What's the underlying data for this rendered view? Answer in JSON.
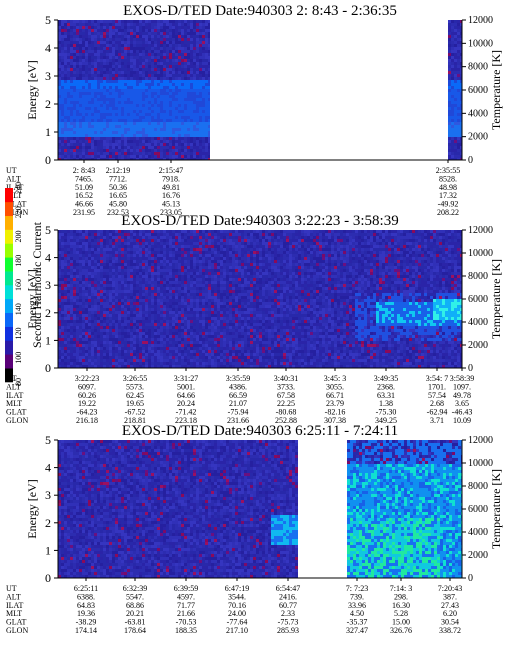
{
  "colorbar": {
    "label": "Second Harmonic Current",
    "ticks": [
      "80",
      "100",
      "120",
      "140",
      "160",
      "180",
      "200",
      "220",
      "240"
    ],
    "colors": [
      "#000000",
      "#5a0078",
      "#2a1aa8",
      "#1030e0",
      "#0a68f8",
      "#00a8f8",
      "#00e0d8",
      "#00e890",
      "#10ff30",
      "#98ff00",
      "#f0f000",
      "#ffb000",
      "#ff5000",
      "#ff0000"
    ]
  },
  "chart_data": [
    {
      "type": "heatmap",
      "title": "EXOS-D/TED   Date:940303  2: 8:43 - 2:36:35",
      "ylabel": "Energy [eV]",
      "ylim": [
        0,
        5
      ],
      "yticks": [
        "0",
        "1",
        "2",
        "3",
        "4",
        "5"
      ],
      "y2label": "Temperature [K]",
      "y2lim": [
        0,
        12000
      ],
      "y2ticks": [
        "0",
        "2000",
        "4000",
        "6000",
        "8000",
        "10000",
        "12000"
      ],
      "row_labels": [
        "UT",
        "ALT",
        "ILAT",
        "MLT",
        "GLAT",
        "GLON"
      ],
      "columns": [
        {
          "values": [
            "2: 8:43",
            "7465.",
            "51.09",
            "16.52",
            "46.66",
            "231.95"
          ]
        },
        {
          "values": [
            "2:12:19",
            "7712.",
            "50.36",
            "16.65",
            "45.80",
            "232.53"
          ]
        },
        {
          "values": [
            "2:15:47",
            "7918.",
            "49.81",
            "16.76",
            "45.13",
            "233.05"
          ]
        },
        {
          "values": [
            "2:35:55",
            "8528.",
            "48.98",
            "17.32",
            "-49.92",
            "208.22"
          ]
        }
      ]
    },
    {
      "type": "heatmap",
      "title": "EXOS-D/TED   Date:940303  3:22:23 - 3:58:39",
      "ylabel": "Energy [eV]",
      "ylim": [
        0,
        5
      ],
      "yticks": [
        "0",
        "1",
        "2",
        "3",
        "4",
        "5"
      ],
      "y2label": "Temperature [K]",
      "y2lim": [
        0,
        12000
      ],
      "y2ticks": [
        "0",
        "2000",
        "4000",
        "6000",
        "8000",
        "10000",
        "12000"
      ],
      "row_labels": [
        "UT",
        "ALT",
        "ILAT",
        "MLT",
        "GLAT",
        "GLON"
      ],
      "columns": [
        {
          "values": [
            "3:22:23",
            "6097.",
            "60.26",
            "19.22",
            "-64.23",
            "216.18"
          ]
        },
        {
          "values": [
            "3:26:55",
            "5573.",
            "62.45",
            "19.65",
            "-67.52",
            "218.81"
          ]
        },
        {
          "values": [
            "3:31:27",
            "5001.",
            "64.66",
            "20.24",
            "-71.42",
            "223.18"
          ]
        },
        {
          "values": [
            "3:35:59",
            "4386.",
            "66.59",
            "21.07",
            "-75.94",
            "231.66"
          ]
        },
        {
          "values": [
            "3:40:31",
            "3733.",
            "67.58",
            "22.25",
            "-80.68",
            "252.88"
          ]
        },
        {
          "values": [
            "3:45: 3",
            "3055.",
            "66.71",
            "23.79",
            "-82.16",
            "307.38"
          ]
        },
        {
          "values": [
            "3:49:35",
            "2368.",
            "63.31",
            "1.38",
            "-75.30",
            "349.25"
          ]
        },
        {
          "values": [
            "3:54: 7",
            "1701.",
            "57.54",
            "2.68",
            "-62.94",
            "3.71"
          ]
        },
        {
          "values": [
            "3:58:39",
            "1097.",
            "49.78",
            "3.65",
            "-46.43",
            "10.09"
          ]
        }
      ]
    },
    {
      "type": "heatmap",
      "title": "EXOS-D/TED   Date:940303  6:25:11 - 7:24:11",
      "ylabel": "Energy [eV]",
      "ylim": [
        0,
        5
      ],
      "yticks": [
        "0",
        "1",
        "2",
        "3",
        "4",
        "5"
      ],
      "y2label": "Temperature [K]",
      "y2lim": [
        0,
        12000
      ],
      "y2ticks": [
        "0",
        "2000",
        "4000",
        "6000",
        "8000",
        "10000",
        "12000"
      ],
      "row_labels": [
        "UT",
        "ALT",
        "ILAT",
        "MLT",
        "GLAT",
        "GLON"
      ],
      "columns": [
        {
          "values": [
            "6:25:11",
            "6388.",
            "64.83",
            "19.36",
            "-38.29",
            "174.14"
          ]
        },
        {
          "values": [
            "6:32:39",
            "5547.",
            "68.86",
            "20.21",
            "-63.81",
            "178.64"
          ]
        },
        {
          "values": [
            "6:39:59",
            "4597.",
            "71.77",
            "21.66",
            "-70.53",
            "188.35"
          ]
        },
        {
          "values": [
            "6:47:19",
            "3544.",
            "70.16",
            "24.00",
            "-77.64",
            "217.10"
          ]
        },
        {
          "values": [
            "6:54:47",
            "2416.",
            "60.77",
            "2.33",
            "-75.73",
            "285.93"
          ]
        },
        {
          "values": [
            "7: 7:23",
            "739.",
            "33.96",
            "4.50",
            "-35.37",
            "327.47"
          ]
        },
        {
          "values": [
            "7:14: 3",
            "298.",
            "16.30",
            "5.28",
            "15.00",
            "326.76"
          ]
        },
        {
          "values": [
            "7:20:43",
            "387.",
            "27.43",
            "6.20",
            "30.54",
            "338.72"
          ]
        }
      ]
    }
  ]
}
